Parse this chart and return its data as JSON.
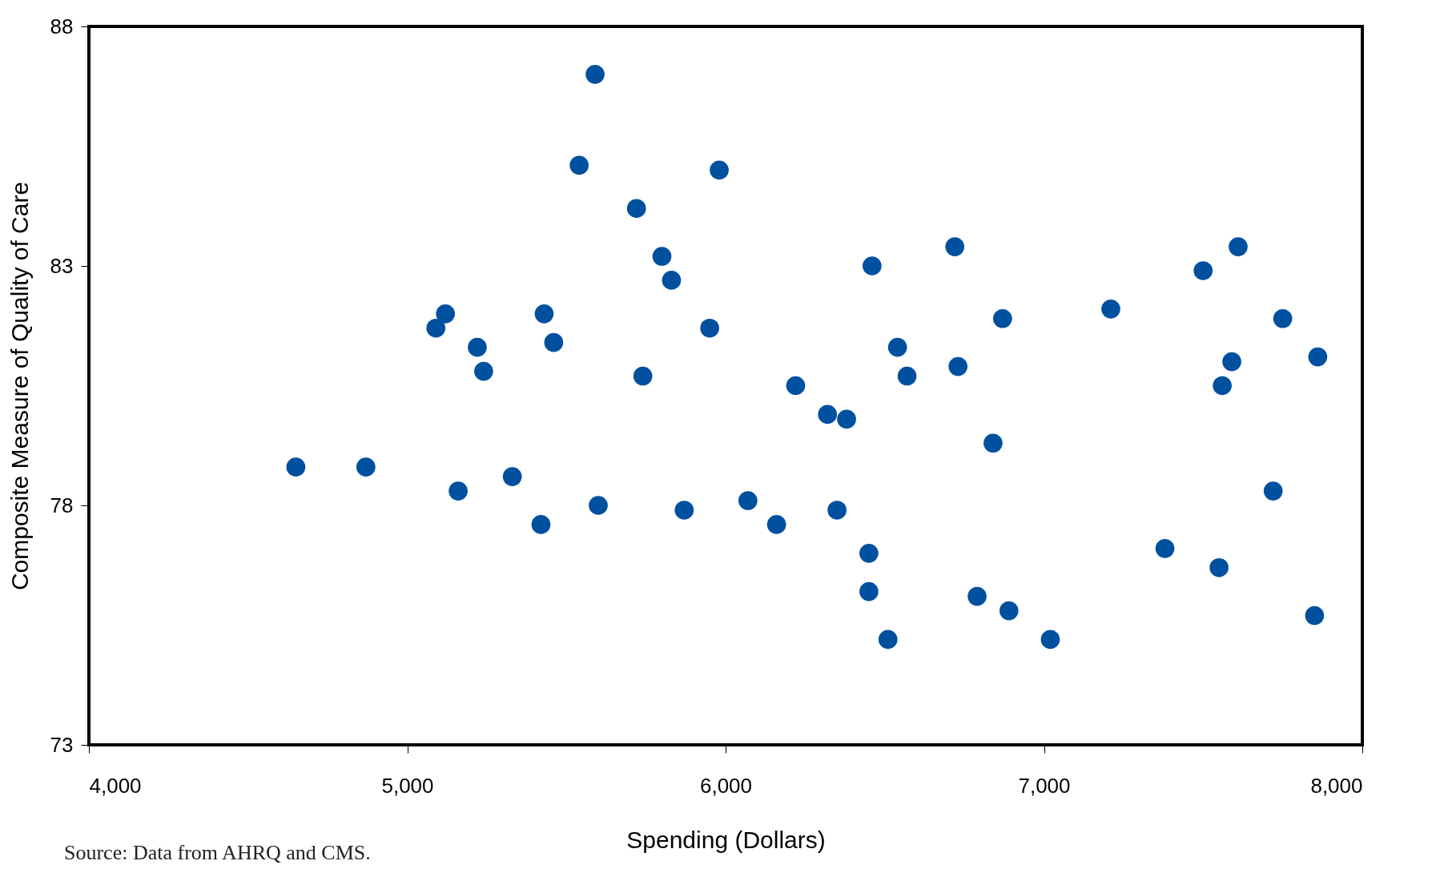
{
  "chart_data": {
    "type": "scatter",
    "xlabel": "Spending (Dollars)",
    "ylabel": "Composite Measure of Quality of Care",
    "annotations": [
      "Source: Data from AHRQ and CMS."
    ],
    "x": [
      4650,
      4870,
      5090,
      5120,
      5160,
      5220,
      5240,
      5330,
      5420,
      5430,
      5460,
      5540,
      5590,
      5600,
      5720,
      5740,
      5800,
      5830,
      5870,
      5950,
      5980,
      6070,
      6160,
      6220,
      6320,
      6350,
      6380,
      6450,
      6450,
      6460,
      6510,
      6540,
      6570,
      6720,
      6730,
      6790,
      6840,
      6870,
      6890,
      7020,
      7210,
      7380,
      7500,
      7550,
      7560,
      7590,
      7610,
      7720,
      7750,
      7850,
      7860
    ],
    "series": [
      {
        "color": "#0050a0",
        "values": [
          78.8,
          78.8,
          81.7,
          82.0,
          78.3,
          81.3,
          80.8,
          78.6,
          77.6,
          82.0,
          81.4,
          85.1,
          87.0,
          78.0,
          84.2,
          80.7,
          83.2,
          82.7,
          77.9,
          81.7,
          85.0,
          78.1,
          77.6,
          80.5,
          79.9,
          77.9,
          79.8,
          77.0,
          76.2,
          83.0,
          75.2,
          81.3,
          80.7,
          83.4,
          80.9,
          76.1,
          79.3,
          81.9,
          75.8,
          75.2,
          82.1,
          77.1,
          82.9,
          76.7,
          80.5,
          81.0,
          83.4,
          78.3,
          81.9,
          75.7,
          81.1
        ]
      }
    ],
    "xlim": [
      4000,
      8000
    ],
    "xticks": [
      {
        "value": 4000,
        "label": "4,000"
      },
      {
        "value": 5000,
        "label": "5,000"
      },
      {
        "value": 6000,
        "label": "6,000"
      },
      {
        "value": 7000,
        "label": "7,000"
      },
      {
        "value": 8000,
        "label": "8,000"
      }
    ],
    "ylim": [
      73,
      88
    ],
    "yticks": [
      73,
      78,
      83,
      88
    ],
    "grid": false,
    "marker": "circle"
  }
}
